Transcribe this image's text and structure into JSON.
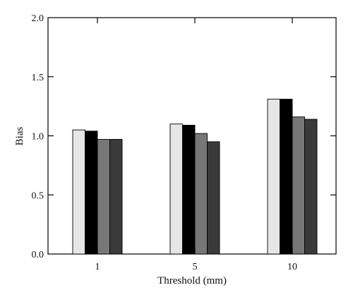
{
  "chart_data": {
    "type": "bar",
    "title": "",
    "xlabel": "Threshold (mm)",
    "ylabel": "Bias",
    "categories": [
      "1",
      "5",
      "10"
    ],
    "ylim": [
      0.0,
      2.0
    ],
    "yticks": [
      "0.0",
      "0.5",
      "1.0",
      "1.5",
      "2.0"
    ],
    "grid": false,
    "legend": "none",
    "series": [
      {
        "values": [
          1.05,
          1.1,
          1.31
        ],
        "color": "#e6e6e6"
      },
      {
        "values": [
          1.04,
          1.09,
          1.31
        ],
        "color": "#000000"
      },
      {
        "values": [
          0.97,
          1.02,
          1.16
        ],
        "color": "#777777"
      },
      {
        "values": [
          0.97,
          0.95,
          1.14
        ],
        "color": "#3a3a3a"
      }
    ]
  }
}
